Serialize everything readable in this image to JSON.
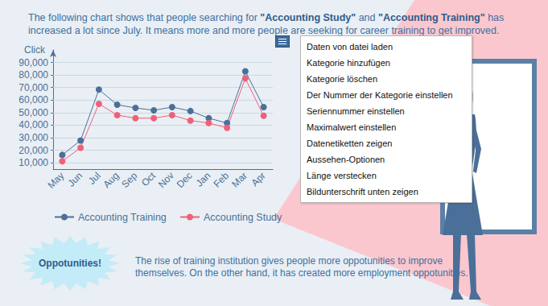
{
  "chart_data": {
    "type": "line",
    "categories": [
      "May",
      "Jun",
      "Jul",
      "Aug",
      "Sep",
      "Oct",
      "Nov",
      "Dec",
      "Jan",
      "Feb",
      "Mar",
      "Apr"
    ],
    "series": [
      {
        "name": "Accounting Training",
        "color": "#4a7099",
        "marker": "circle",
        "values": [
          16300,
          27800,
          68400,
          56300,
          53800,
          51900,
          54400,
          51300,
          45600,
          41700,
          83000,
          54400
        ]
      },
      {
        "name": "Accounting Study",
        "color": "#f0607a",
        "marker": "circle",
        "values": [
          11300,
          22000,
          57000,
          48000,
          45600,
          45600,
          48000,
          43700,
          41700,
          37900,
          77300,
          47500
        ]
      }
    ],
    "ylabel": "Click",
    "ylim": [
      5000,
      100000
    ],
    "yticks": [
      {
        "value": 10000,
        "label": "10,000"
      },
      {
        "value": 20000,
        "label": "20,000"
      },
      {
        "value": 30000,
        "label": "30,000"
      },
      {
        "value": 40000,
        "label": "40,000"
      },
      {
        "value": 50000,
        "label": "50,000"
      },
      {
        "value": 60000,
        "label": "60,000"
      },
      {
        "value": 70000,
        "label": "70,000"
      },
      {
        "value": 80000,
        "label": "80,000"
      },
      {
        "value": 90000,
        "label": "90,000"
      }
    ],
    "grid": true,
    "legend": "bottom"
  },
  "intro_text": [
    {
      "text": "The following chart shows that people searching for "
    },
    {
      "text": "\"Accounting Study\"",
      "bold": true
    },
    {
      "text": " and "
    },
    {
      "text": "\"Accounting Training\"",
      "bold": true
    },
    {
      "text": " has increased a lot since July. It means more and more people are seeking for career training to get improved."
    }
  ],
  "callout": {
    "label": "Oppotunities!",
    "text": "The rise of training institution gives people more oppotunities to improve themselves. On the other hand, it has created more employment oppotunities."
  },
  "context_menu": {
    "items": [
      "Daten von datei laden",
      "Kategorie hinzufügen",
      "Kategorie löschen",
      "Der Nummer der Kategorie einstellen",
      "Seriennummer einstellen",
      "Maximalwert einstellen",
      "Datenetiketten zeigen",
      "Aussehen-Optionen",
      "Länge verstecken",
      "Bildunterschrift unten zeigen"
    ]
  }
}
